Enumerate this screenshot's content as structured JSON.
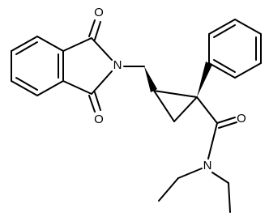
{
  "atoms": [
    {
      "label": "O"
    },
    {
      "label": "O"
    },
    {
      "label": "N"
    },
    {
      "label": "O"
    },
    {
      "label": "N"
    }
  ]
}
